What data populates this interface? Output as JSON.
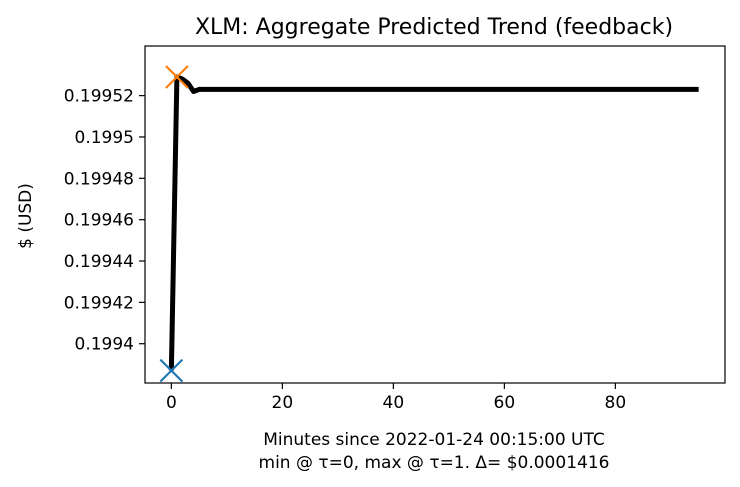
{
  "chart_data": {
    "type": "line",
    "title": "XLM: Aggregate Predicted Trend (feedback)",
    "xlabel": "Minutes since 2022-01-24 00:15:00 UTC",
    "xlabel_line2": "min @ τ=0, max @ τ=1. Δ= $0.0001416",
    "ylabel": "$ (USD)",
    "xlim": [
      -4.75,
      99.75
    ],
    "ylim": [
      0.199381,
      0.199544
    ],
    "x_ticks": [
      0,
      20,
      40,
      60,
      80
    ],
    "y_ticks": [
      0.1994,
      0.19942,
      0.19944,
      0.19946,
      0.19948,
      0.1995,
      0.19952
    ],
    "y_tick_labels": [
      "0.1994",
      "0.19942",
      "0.19944",
      "0.19946",
      "0.19948",
      "0.1995",
      "0.19952"
    ],
    "grid": false,
    "series": [
      {
        "color": "#000000",
        "x": [
          0,
          1,
          2,
          3,
          4,
          5,
          6,
          8,
          10,
          20,
          40,
          60,
          80,
          95
        ],
        "y": [
          0.199387,
          0.199529,
          0.199528,
          0.199526,
          0.199522,
          0.199523,
          0.199523,
          0.199523,
          0.199523,
          0.199523,
          0.199523,
          0.199523,
          0.199523,
          0.199523
        ]
      }
    ],
    "markers": [
      {
        "name": "min",
        "symbol": "x",
        "color": "#1f77b4",
        "x": 0,
        "y": 0.199387
      },
      {
        "name": "max",
        "symbol": "x",
        "color": "#ff7f0e",
        "x": 1,
        "y": 0.199529
      }
    ]
  }
}
